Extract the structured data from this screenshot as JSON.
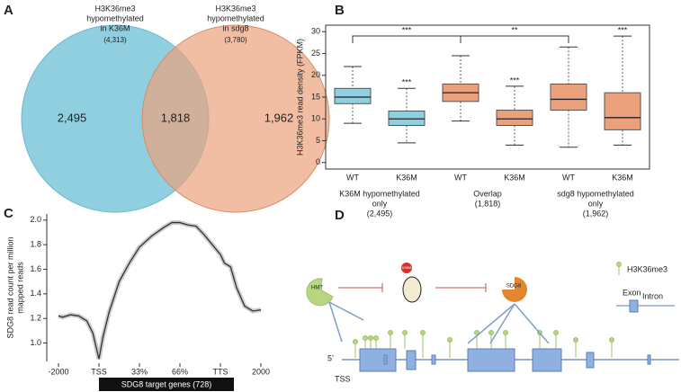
{
  "panel_labels": [
    "A",
    "B",
    "C",
    "D"
  ],
  "chart_data": [
    {
      "type": "venn",
      "sets": [
        {
          "name": [
            "H3K36me3",
            "hypomethylated",
            "in K36M"
          ],
          "size": {
            "value": 4313,
            "label": "(4,313)"
          },
          "color": "#8fcfe0"
        },
        {
          "name": [
            "H3K36me3",
            "hypomethylated",
            "in sdg8"
          ],
          "size": {
            "value": 3780,
            "label": "(3,780)"
          },
          "color": "#eba27c"
        }
      ],
      "values": [
        2495,
        1818,
        1962
      ],
      "value_labels": [
        "2,495",
        "1,818",
        "1,962"
      ]
    },
    {
      "type": "box",
      "ylabel": "H3K36me3 read density (FPKM)",
      "categories": [
        "WT",
        "K36M",
        "WT",
        "K36M",
        "WT",
        "K36M"
      ],
      "groups": [
        [
          "K36M hypomethylated",
          "only",
          "(2,495)"
        ],
        [
          "Overlap",
          "(1,818)"
        ],
        [
          "sdg8 hypomethylated",
          "only",
          "(1,962)"
        ]
      ],
      "boxes": [
        {
          "min": 9,
          "q1": 13.5,
          "median": 15,
          "q3": 17,
          "max": 22,
          "color": "#8fcfe0"
        },
        {
          "min": 4.5,
          "q1": 8.5,
          "median": 10,
          "q3": 11.8,
          "max": 17,
          "color": "#8fcfe0"
        },
        {
          "min": 9.5,
          "q1": 14,
          "median": 16,
          "q3": 18,
          "max": 24.5,
          "color": "#eba27c"
        },
        {
          "min": 4,
          "q1": 8.5,
          "median": 10,
          "q3": 12,
          "max": 17.5,
          "color": "#eba27c"
        },
        {
          "min": 3.5,
          "q1": 12,
          "median": 14.5,
          "q3": 18,
          "max": 26.5,
          "color": "#eba27c"
        },
        {
          "min": 4,
          "q1": 7.5,
          "median": 10.3,
          "q3": 16,
          "max": 29,
          "color": "#eba27c"
        }
      ],
      "box_labels": [
        null,
        "***",
        null,
        "***",
        null,
        "***"
      ],
      "bracket_labels": [
        "***",
        "**"
      ],
      "ylim": [
        -1.5,
        31.5
      ],
      "yticks": [
        0,
        5,
        10,
        15,
        20,
        25,
        30
      ]
    },
    {
      "type": "line",
      "ylabel": [
        "SDG8 read count per million",
        "mapped reads"
      ],
      "xlabel": "SDG8 target genes (728)",
      "x": [
        0,
        0.1,
        0.3,
        0.5,
        0.7,
        0.85,
        1.0,
        1.1,
        1.25,
        1.5,
        1.75,
        2.0,
        2.3,
        2.6,
        2.8,
        3.0,
        3.2,
        3.4,
        3.6,
        3.8,
        4.0,
        4.1,
        4.25,
        4.4,
        4.6,
        4.8,
        5.0
      ],
      "series": [
        {
          "color": "#333333",
          "values": [
            1.22,
            1.21,
            1.23,
            1.22,
            1.18,
            1.08,
            0.87,
            1.05,
            1.25,
            1.5,
            1.65,
            1.78,
            1.87,
            1.94,
            1.98,
            1.98,
            1.96,
            1.95,
            1.88,
            1.8,
            1.72,
            1.65,
            1.62,
            1.45,
            1.3,
            1.26,
            1.27
          ]
        }
      ],
      "xlim": [
        0,
        5
      ],
      "xticks": [
        {
          "value": 0,
          "label": "-2000"
        },
        {
          "value": 1,
          "label": "TSS"
        },
        {
          "value": 2,
          "label": "33%"
        },
        {
          "value": 3,
          "label": "66%"
        },
        {
          "value": 4,
          "label": "TTS"
        },
        {
          "value": 5,
          "label": "2000"
        }
      ],
      "ylim": [
        0.85,
        2.05
      ],
      "yticks": [
        {
          "value": 1,
          "label": "1.0"
        },
        1.2,
        1.4,
        1.6,
        1.8,
        {
          "value": 2,
          "label": "2.0"
        }
      ]
    }
  ],
  "diagram": {
    "legend_mark": "H3K36me3",
    "exon": "Exon",
    "intron": "Intron",
    "writer": "HMT",
    "mutant": "K36M",
    "reader": "SDG8",
    "five_prime": "5’",
    "tss": "TSS"
  }
}
